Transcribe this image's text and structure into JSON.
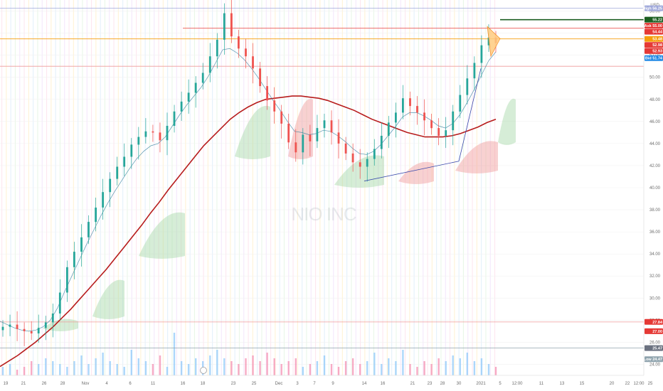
{
  "chart_data": {
    "type": "candlestick",
    "symbol_watermark": "NIO INC",
    "currency": "USD",
    "price_axis_position": "right",
    "ylim": [
      23,
      57
    ],
    "price_ticks": [
      24,
      26,
      28,
      30,
      32,
      34,
      36,
      38,
      40,
      42,
      44,
      46,
      48,
      50,
      52,
      54,
      56
    ],
    "price_tick_labels": [
      "24.00",
      "26.00",
      "28.00",
      "30.00",
      "32.00",
      "34.00",
      "36.00",
      "38.00",
      "40.00",
      "42.00",
      "44.00",
      "46.00",
      "48.00",
      "50.00",
      "52.00",
      "54.00",
      "56.00"
    ],
    "time_ticks": [
      "19",
      "21",
      "26",
      "28",
      "Nov",
      "4",
      "6",
      "11",
      "16",
      "18",
      "23",
      "25",
      "Dec",
      "3",
      "7",
      "9",
      "14",
      "16",
      "21",
      "23",
      "28",
      "30",
      "2021",
      "5",
      "12:00",
      "11",
      "13",
      "15",
      "20",
      "22",
      "12:00",
      "25"
    ],
    "high_low": {
      "high_label": "High",
      "high_value": "56.25",
      "low_label": "Low",
      "low_value": "24.47"
    },
    "price_labels": [
      {
        "label": "",
        "value": "55.22",
        "color": "#1b5e20"
      },
      {
        "label": "Ask",
        "value": "55.00",
        "color": "#e53935"
      },
      {
        "label": "",
        "value": "54.44",
        "color": "#e53935"
      },
      {
        "label": "",
        "value": "53.48",
        "color": "#f59e0b"
      },
      {
        "label": "",
        "value": "52.98",
        "color": "#e53935"
      },
      {
        "label": "",
        "value": "52.93",
        "color": "#e53935"
      },
      {
        "label": "Bid",
        "value": "51.74",
        "color": "#1e88e5"
      },
      {
        "label": "",
        "value": "27.84",
        "color": "#e53935"
      },
      {
        "label": "",
        "value": "27.00",
        "color": "#e53935"
      },
      {
        "label": "",
        "value": "25.47",
        "color": "#6b7280"
      }
    ],
    "series": [
      {
        "role": "price-close",
        "color": "#26a69a",
        "values": [
          27.4,
          27.6,
          27.2,
          27.0,
          26.8,
          27.3,
          27.8,
          28.6,
          30.5,
          32.8,
          34.2,
          35.5,
          36.9,
          38.2,
          39.6,
          40.8,
          41.9,
          42.8,
          43.9,
          44.6,
          45.1,
          45.0,
          44.3,
          45.6,
          46.9,
          47.8,
          48.6,
          49.5,
          50.4,
          51.9,
          53.4,
          55.8,
          53.7,
          52.6,
          51.9,
          50.8,
          49.2,
          47.9,
          46.9,
          45.8,
          44.1,
          43.2,
          44.8,
          44.2,
          45.4,
          46.1,
          45.0,
          44.0,
          43.1,
          42.3,
          41.9,
          42.6,
          43.5,
          44.7,
          45.9,
          46.8,
          48.1,
          47.4,
          46.8,
          46.1,
          45.4,
          44.7,
          45.2,
          46.9,
          48.4,
          49.9,
          51.3,
          52.9,
          53.6,
          53.1
        ]
      },
      {
        "role": "ma-200",
        "color": "#b71c1c",
        "values": [
          23.8,
          24.3,
          24.8,
          25.4,
          26.0,
          26.7,
          27.4,
          28.2,
          29.0,
          29.9,
          30.8,
          31.7,
          32.6,
          33.6,
          34.6,
          35.6,
          36.6,
          37.7,
          38.7,
          39.8,
          40.8,
          41.8,
          42.8,
          43.8,
          44.6,
          45.4,
          46.2,
          46.8,
          47.3,
          47.7,
          48.0,
          48.1,
          48.2,
          48.3,
          48.3,
          48.2,
          48.1,
          47.9,
          47.6,
          47.3,
          47.0,
          46.6,
          46.2,
          45.9,
          45.6,
          45.3,
          45.0,
          44.8,
          44.6,
          44.6,
          44.6,
          44.7,
          44.9,
          45.2,
          45.5,
          45.9,
          46.2
        ]
      },
      {
        "role": "ma-fast",
        "color": "#2e7d9e",
        "values": [
          27.9,
          27.6,
          27.3,
          27.1,
          27.0,
          27.1,
          27.4,
          28.0,
          29.1,
          30.6,
          32.0,
          33.4,
          34.8,
          36.1,
          37.4,
          38.6,
          39.7,
          40.7,
          41.7,
          42.6,
          43.3,
          43.8,
          44.0,
          44.6,
          45.6,
          46.6,
          47.5,
          48.3,
          49.1,
          50.1,
          51.3,
          52.5,
          52.6,
          52.2,
          51.6,
          50.8,
          49.9,
          48.9,
          47.9,
          47.0,
          46.0,
          45.1,
          45.0,
          44.8,
          44.9,
          45.2,
          45.1,
          44.7,
          44.2,
          43.6,
          43.1,
          43.0,
          43.3,
          43.9,
          44.7,
          45.5,
          46.4,
          46.8,
          46.8,
          46.5,
          46.1,
          45.6,
          45.4,
          45.8,
          46.6,
          47.7,
          48.9,
          50.2,
          51.5,
          52.3
        ]
      },
      {
        "role": "volume",
        "color": "#9db6d6",
        "values": [
          3,
          4,
          2,
          3,
          5,
          4,
          6,
          5,
          4,
          3,
          5,
          7,
          4,
          6,
          8,
          5,
          4,
          3,
          9,
          6,
          5,
          4,
          7,
          3,
          15,
          5,
          4,
          6,
          5,
          7,
          9,
          6,
          5,
          4,
          6,
          7,
          5,
          8,
          6,
          4,
          5,
          6,
          3,
          4,
          5,
          7,
          4,
          3,
          5,
          6,
          4,
          5,
          8,
          4,
          6,
          5,
          9,
          4,
          3,
          5,
          4,
          6,
          5,
          7,
          6,
          8,
          5,
          6,
          4,
          3
        ]
      }
    ],
    "trendlines": [
      {
        "from": [
          "14",
          40.6
        ],
        "to": [
          "30",
          42.4
        ],
        "color": "#3949ab"
      },
      {
        "from": [
          "30",
          42.4
        ],
        "to": [
          "2021",
          50.8
        ],
        "color": "#3949ab"
      }
    ],
    "levels": [
      {
        "value": 55.22,
        "color": "#1b5e20",
        "from": "5",
        "to": "right"
      },
      {
        "value": 54.44,
        "color": "#e53935",
        "from": "16",
        "to": "right"
      },
      {
        "value": 53.48,
        "color": "#f59e0b",
        "from": "left",
        "to": "right"
      },
      {
        "value": 51.0,
        "color": "#ef9a9a",
        "from": "left",
        "to": "right"
      },
      {
        "value": 56.25,
        "color": "#9fa8da",
        "from": "left",
        "to": "right"
      },
      {
        "value": 27.84,
        "color": "#ef9a9a",
        "from": "left",
        "to": "right"
      },
      {
        "value": 25.47,
        "color": "#90a4ae",
        "from": "left",
        "to": "right"
      }
    ],
    "grid": true,
    "legend": "none"
  }
}
